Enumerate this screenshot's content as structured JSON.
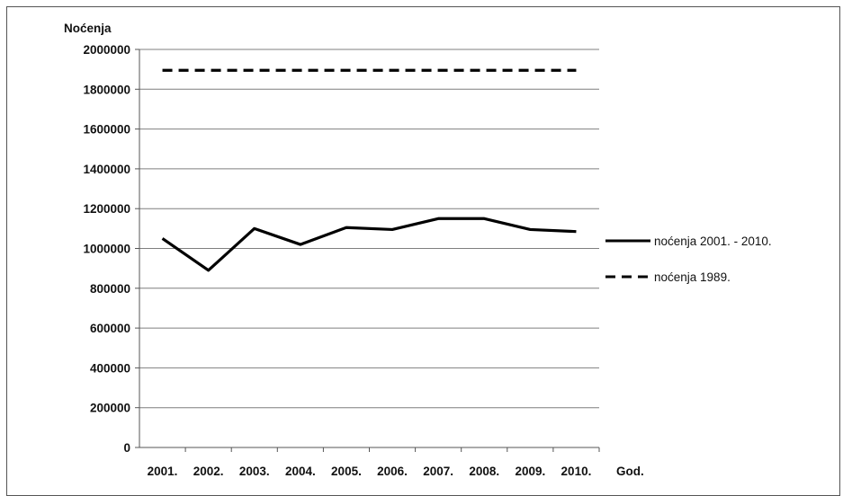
{
  "chart_data": {
    "type": "line",
    "ylabel": "Noćenja",
    "xlabel": "God.",
    "categories": [
      "2001.",
      "2002.",
      "2003.",
      "2004.",
      "2005.",
      "2006.",
      "2007.",
      "2008.",
      "2009.",
      "2010."
    ],
    "ylim": [
      0,
      2000000
    ],
    "yticks": [
      0,
      200000,
      400000,
      600000,
      800000,
      1000000,
      1200000,
      1400000,
      1600000,
      1800000,
      2000000
    ],
    "grid": "horizontal",
    "legend_position": "right",
    "series": [
      {
        "name": "noćenja 2001. - 2010.",
        "style": "solid",
        "color": "#000000",
        "values": [
          1050000,
          890000,
          1100000,
          1020000,
          1105000,
          1095000,
          1150000,
          1150000,
          1095000,
          1085000
        ]
      },
      {
        "name": "noćenja 1989.",
        "style": "dashed",
        "color": "#000000",
        "values": [
          1895000,
          1895000,
          1895000,
          1895000,
          1895000,
          1895000,
          1895000,
          1895000,
          1895000,
          1895000
        ]
      }
    ]
  }
}
